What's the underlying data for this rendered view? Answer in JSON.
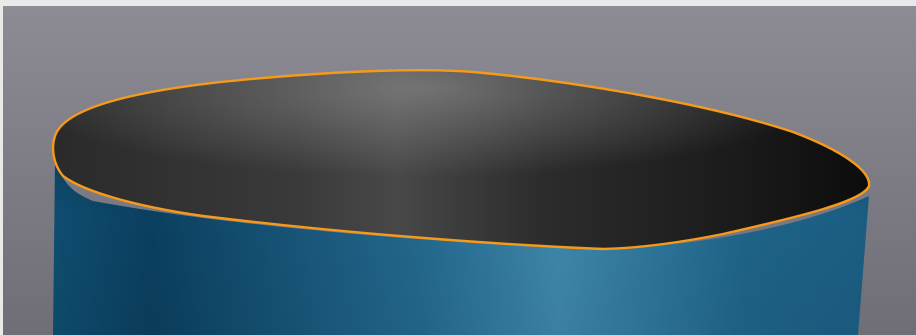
{
  "viewport": {
    "label": "",
    "background_top": "#8d8c95",
    "background_bottom": "#6f6e76"
  },
  "model": {
    "shape": "open-cylinder",
    "outer_surface_color": "#1f6a8f",
    "inner_surface_color": "#1e1e1e",
    "highlight_edge_color": "#f59a1b",
    "selection": "top-rim-edge"
  }
}
